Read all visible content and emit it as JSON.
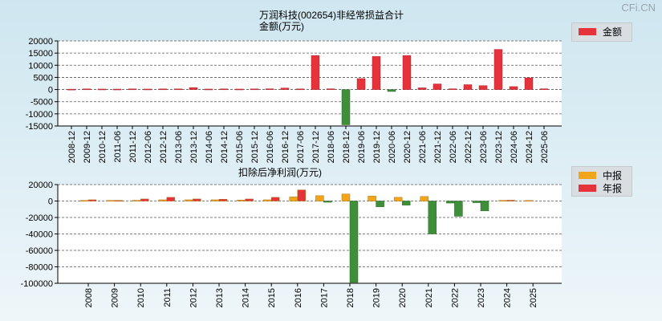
{
  "watermark": "CFi.CN",
  "chart_data": [
    {
      "type": "bar",
      "title": "万润科技(002654)非经常损益合计",
      "ylabel": "金额(万元)",
      "legend": [
        "金额"
      ],
      "legend_position": "top-right",
      "colors": {
        "positive": "#e5323b",
        "negative": "#3f8f3a"
      },
      "ylim": [
        -15000,
        20000
      ],
      "yticks": [
        20000,
        15000,
        10000,
        5000,
        0,
        -5000,
        -10000,
        -15000
      ],
      "grid": true,
      "categories": [
        "2008-12",
        "2009-12",
        "2010-12",
        "2011-06",
        "2011-12",
        "2012-06",
        "2012-12",
        "2013-06",
        "2013-12",
        "2014-06",
        "2014-12",
        "2015-06",
        "2015-12",
        "2016-06",
        "2016-12",
        "2017-06",
        "2017-12",
        "2018-06",
        "2018-12",
        "2019-06",
        "2019-12",
        "2020-06",
        "2020-12",
        "2021-06",
        "2021-12",
        "2022-06",
        "2022-12",
        "2023-06",
        "2023-12",
        "2024-06",
        "2024-12",
        "2025-06"
      ],
      "values": [
        150,
        250,
        200,
        180,
        250,
        200,
        250,
        250,
        800,
        200,
        250,
        200,
        250,
        300,
        600,
        250,
        14000,
        300,
        -14500,
        4500,
        13600,
        -800,
        14000,
        700,
        2300,
        300,
        2000,
        1600,
        16500,
        1200,
        4800,
        300
      ]
    },
    {
      "type": "bar",
      "title": "扣除后净利润(万元)",
      "legend": [
        "中报",
        "年报"
      ],
      "legend_position": "top-right",
      "colors": {
        "中报": "#f2a51a",
        "年报": "#e5323b",
        "negative": "#3f8f3a"
      },
      "ylim": [
        -100000,
        20000
      ],
      "yticks": [
        20000,
        0,
        -20000,
        -40000,
        -60000,
        -80000,
        -100000
      ],
      "grid": true,
      "categories": [
        "2008",
        "2009",
        "2010",
        "2011",
        "2012",
        "2013",
        "2014",
        "2015",
        "2016",
        "2017",
        "2018",
        "2019",
        "2020",
        "2021",
        "2022",
        "2023",
        "2024",
        "2025"
      ],
      "series": [
        {
          "name": "中报",
          "values": [
            700,
            700,
            900,
            1500,
            1500,
            1500,
            1200,
            1500,
            5000,
            6500,
            8500,
            6000,
            4500,
            5500,
            -2500,
            -2000,
            800,
            700
          ]
        },
        {
          "name": "年报",
          "values": [
            1500,
            800,
            2500,
            4500,
            2500,
            2200,
            2500,
            4500,
            13500,
            -1500,
            -99000,
            -7000,
            -5000,
            -40000,
            -18500,
            -12000,
            1000,
            null
          ]
        }
      ]
    }
  ]
}
